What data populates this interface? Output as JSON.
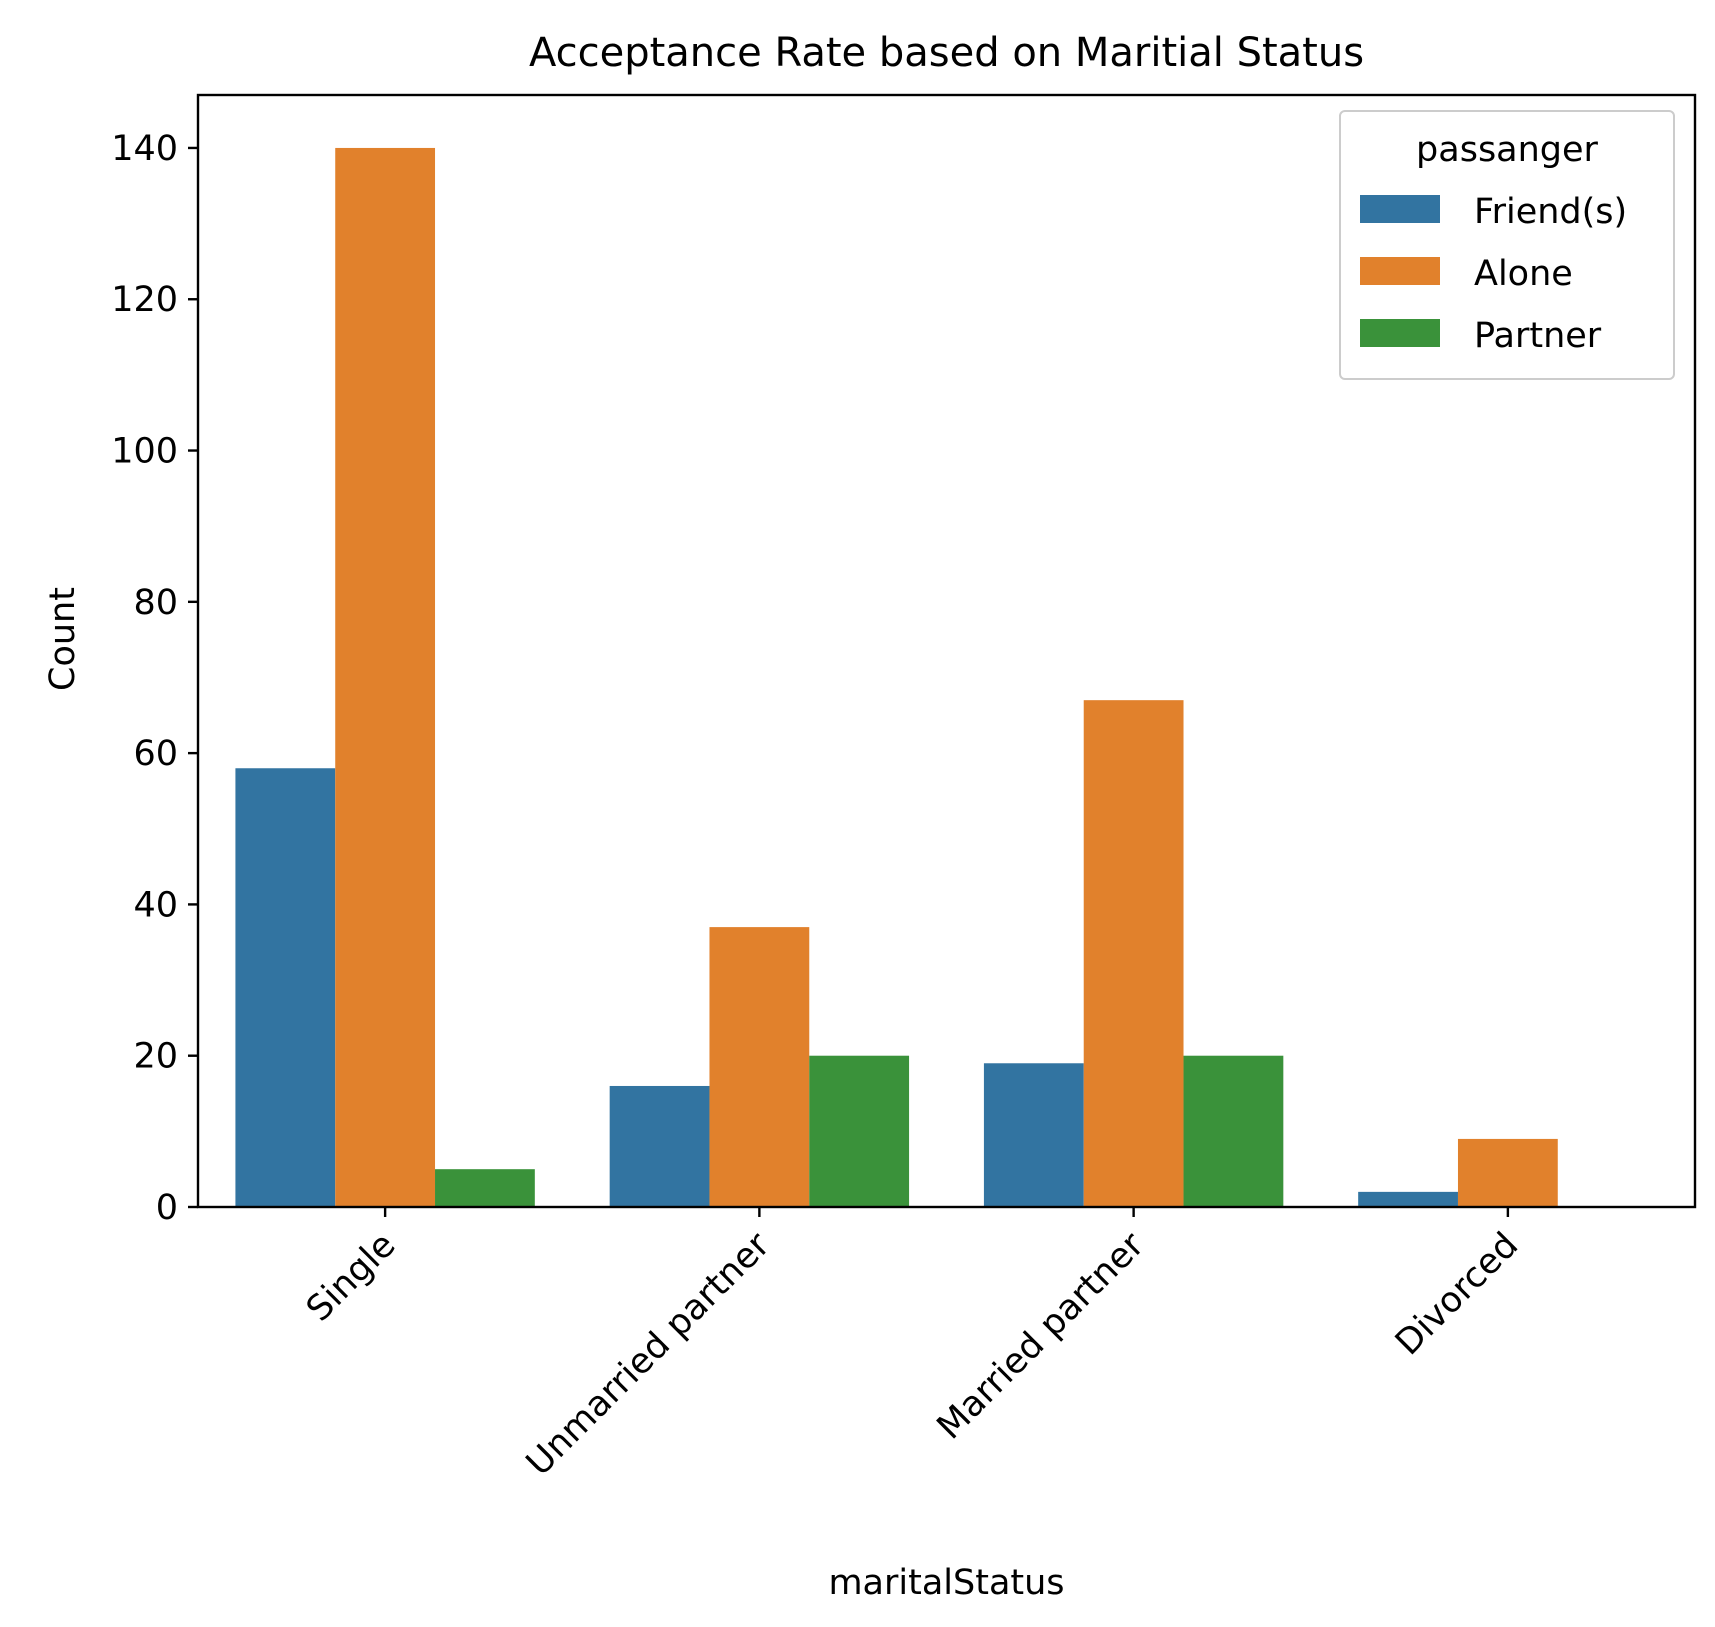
{
  "chart_data": {
    "type": "bar",
    "title": "Acceptance Rate based on Maritial Status",
    "xlabel": "maritalStatus",
    "ylabel": "Count",
    "categories": [
      "Single",
      "Unmarried partner",
      "Married partner",
      "Divorced"
    ],
    "series": [
      {
        "name": "Friend(s)",
        "color": "#3274a1",
        "values": [
          58,
          16,
          19,
          2
        ]
      },
      {
        "name": "Alone",
        "color": "#e1812c",
        "values": [
          140,
          37,
          67,
          9
        ]
      },
      {
        "name": "Partner",
        "color": "#3a923a",
        "values": [
          5,
          20,
          20,
          0
        ]
      }
    ],
    "ylim": [
      0,
      147
    ],
    "yticks": [
      0,
      20,
      40,
      60,
      80,
      100,
      120,
      140
    ],
    "legend": {
      "title": "passanger",
      "position": "top-right"
    },
    "grid": false
  }
}
